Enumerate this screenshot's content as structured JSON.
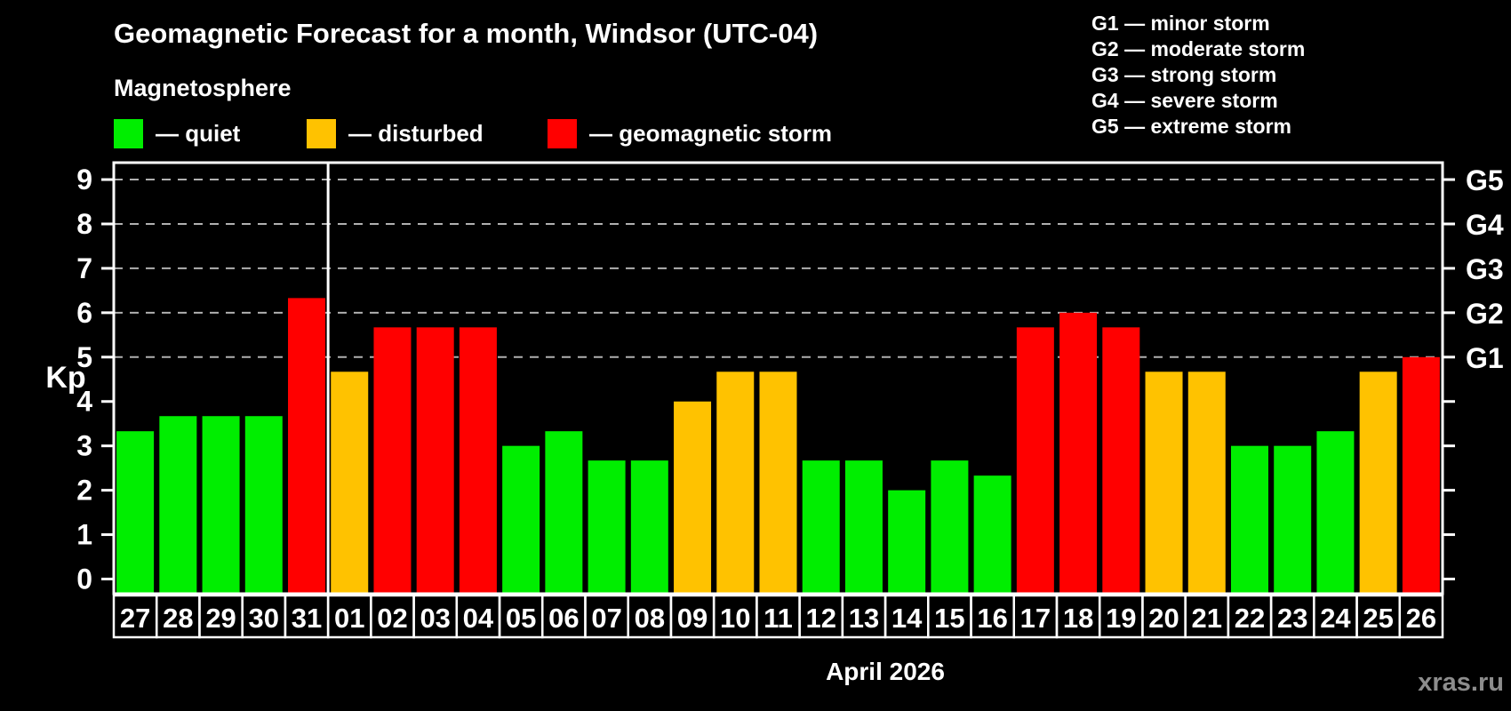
{
  "title": "Geomagnetic Forecast for a month, Windsor (UTC-04)",
  "subtitle": "Magnetosphere",
  "legend": {
    "items": [
      {
        "key": "quiet",
        "label": "— quiet"
      },
      {
        "key": "disturbed",
        "label": "— disturbed"
      },
      {
        "key": "storm",
        "label": "— geomagnetic storm"
      }
    ]
  },
  "g_legend": [
    "G1 — minor storm",
    "G2 — moderate storm",
    "G3 — strong storm",
    "G4 — severe storm",
    "G5 — extreme storm"
  ],
  "watermark": "xras.ru",
  "colors": {
    "quiet": "#00ee00",
    "disturbed": "#ffc200",
    "storm": "#ff0000",
    "axis": "#ffffff",
    "grid": "#b0b0b0",
    "watermark": "#8d8d8d",
    "background": "#000000"
  },
  "chart_data": {
    "type": "bar",
    "title": "Geomagnetic Forecast for a month, Windsor (UTC-04)",
    "xlabel": "April 2026",
    "ylabel": "Kp",
    "categories": [
      "27",
      "28",
      "29",
      "30",
      "31",
      "01",
      "02",
      "03",
      "04",
      "05",
      "06",
      "07",
      "08",
      "09",
      "10",
      "11",
      "12",
      "13",
      "14",
      "15",
      "16",
      "17",
      "18",
      "19",
      "20",
      "21",
      "22",
      "23",
      "24",
      "25",
      "26"
    ],
    "values": [
      3.33,
      3.67,
      3.67,
      3.67,
      6.33,
      4.67,
      5.67,
      5.67,
      5.67,
      3,
      3.33,
      2.67,
      2.67,
      4,
      4.67,
      4.67,
      2.67,
      2.67,
      2,
      2.67,
      2.33,
      5.67,
      6,
      5.67,
      4.67,
      4.67,
      3,
      3,
      3.33,
      4.67,
      5
    ],
    "statuses": [
      "quiet",
      "quiet",
      "quiet",
      "quiet",
      "storm",
      "disturbed",
      "storm",
      "storm",
      "storm",
      "quiet",
      "quiet",
      "quiet",
      "quiet",
      "disturbed",
      "disturbed",
      "disturbed",
      "quiet",
      "quiet",
      "quiet",
      "quiet",
      "quiet",
      "storm",
      "storm",
      "storm",
      "disturbed",
      "disturbed",
      "quiet",
      "quiet",
      "quiet",
      "disturbed",
      "storm"
    ],
    "ylim": [
      -0.37,
      9.37
    ],
    "yticks": [
      0,
      1,
      2,
      3,
      4,
      5,
      6,
      7,
      8,
      9
    ],
    "gridlines": [
      5,
      6,
      7,
      8,
      9
    ],
    "grid_style": "dashed horizontal lines at Kp 5 through 9 only",
    "right_axis": [
      {
        "value": 5,
        "label": "G1"
      },
      {
        "value": 6,
        "label": "G2"
      },
      {
        "value": 7,
        "label": "G3"
      },
      {
        "value": 8,
        "label": "G4"
      },
      {
        "value": 9,
        "label": "G5"
      }
    ],
    "month_separator_after_index": 4,
    "legend_position": "top"
  }
}
